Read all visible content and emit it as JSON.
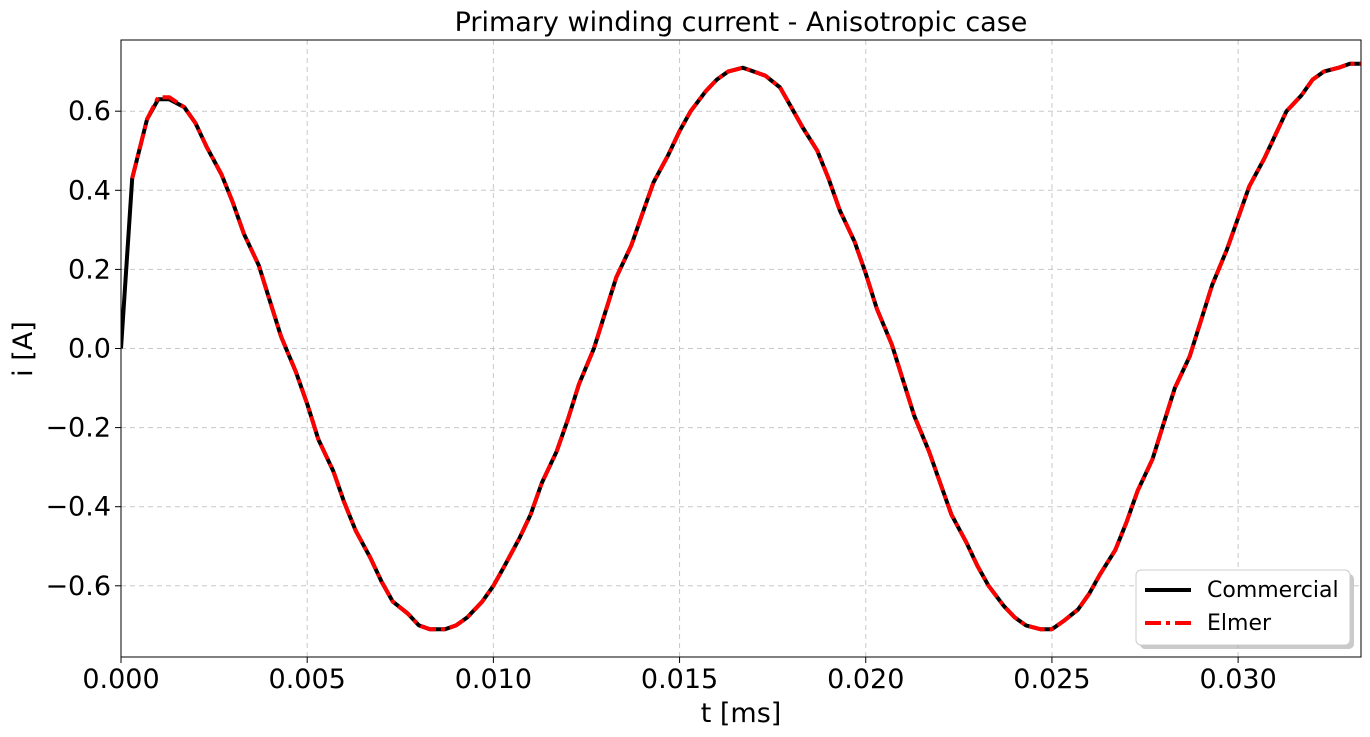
{
  "chart_data": {
    "type": "line",
    "title": "Primary winding current - Anisotropic case",
    "xlabel": "t [ms]",
    "ylabel": "i [A]",
    "xlim": [
      0.0,
      0.0333
    ],
    "ylim": [
      -0.78,
      0.78
    ],
    "xticks": [
      0.0,
      0.005,
      0.01,
      0.015,
      0.02,
      0.025,
      0.03
    ],
    "xtick_labels": [
      "0.000",
      "0.005",
      "0.010",
      "0.015",
      "0.020",
      "0.025",
      "0.030"
    ],
    "yticks": [
      -0.6,
      -0.4,
      -0.2,
      0.0,
      0.2,
      0.4,
      0.6
    ],
    "ytick_labels": [
      "−0.6",
      "−0.4",
      "−0.2",
      "0.0",
      "0.2",
      "0.4",
      "0.6"
    ],
    "grid": true,
    "legend_position": "bottom-right",
    "series": [
      {
        "name": "Commercial",
        "color": "#000000",
        "style": "solid",
        "x": [
          0.0,
          0.0003,
          0.0007,
          0.001,
          0.0013,
          0.0017,
          0.002,
          0.0023,
          0.0027,
          0.003,
          0.0033,
          0.0037,
          0.004,
          0.0043,
          0.0047,
          0.005,
          0.0053,
          0.0057,
          0.006,
          0.0063,
          0.0067,
          0.007,
          0.0073,
          0.0077,
          0.008,
          0.0083,
          0.0087,
          0.009,
          0.0093,
          0.0097,
          0.01,
          0.0103,
          0.0107,
          0.011,
          0.0113,
          0.0117,
          0.012,
          0.0123,
          0.0127,
          0.013,
          0.0133,
          0.0137,
          0.014,
          0.0143,
          0.0147,
          0.015,
          0.0153,
          0.0157,
          0.016,
          0.0163,
          0.0167,
          0.017,
          0.0173,
          0.0177,
          0.018,
          0.0183,
          0.0187,
          0.019,
          0.0193,
          0.0197,
          0.02,
          0.0203,
          0.0207,
          0.021,
          0.0213,
          0.0217,
          0.022,
          0.0223,
          0.0227,
          0.023,
          0.0233,
          0.0237,
          0.024,
          0.0243,
          0.0247,
          0.025,
          0.0253,
          0.0257,
          0.026,
          0.0263,
          0.0267,
          0.027,
          0.0273,
          0.0277,
          0.028,
          0.0283,
          0.0287,
          0.029,
          0.0293,
          0.0297,
          0.03,
          0.0303,
          0.0307,
          0.031,
          0.0313,
          0.0317,
          0.032,
          0.0323,
          0.0327,
          0.033,
          0.0333
        ],
        "y": [
          0.0,
          0.43,
          0.58,
          0.63,
          0.63,
          0.61,
          0.57,
          0.51,
          0.44,
          0.37,
          0.29,
          0.21,
          0.12,
          0.03,
          -0.06,
          -0.14,
          -0.23,
          -0.31,
          -0.39,
          -0.46,
          -0.53,
          -0.59,
          -0.64,
          -0.67,
          -0.7,
          -0.71,
          -0.71,
          -0.7,
          -0.68,
          -0.64,
          -0.6,
          -0.55,
          -0.48,
          -0.42,
          -0.34,
          -0.26,
          -0.18,
          -0.09,
          0.0,
          0.09,
          0.18,
          0.26,
          0.34,
          0.42,
          0.49,
          0.55,
          0.6,
          0.65,
          0.68,
          0.7,
          0.71,
          0.7,
          0.69,
          0.66,
          0.61,
          0.56,
          0.5,
          0.43,
          0.35,
          0.27,
          0.19,
          0.1,
          0.01,
          -0.08,
          -0.17,
          -0.26,
          -0.34,
          -0.42,
          -0.49,
          -0.55,
          -0.6,
          -0.65,
          -0.68,
          -0.7,
          -0.71,
          -0.71,
          -0.69,
          -0.66,
          -0.62,
          -0.57,
          -0.51,
          -0.44,
          -0.36,
          -0.28,
          -0.19,
          -0.1,
          -0.02,
          0.07,
          0.16,
          0.25,
          0.33,
          0.41,
          0.48,
          0.54,
          0.6,
          0.64,
          0.68,
          0.7,
          0.71,
          0.72,
          0.72
        ]
      },
      {
        "name": "Elmer",
        "color": "#ff0000",
        "style": "dashdot",
        "x": [
          0.0003,
          0.0007,
          0.001,
          0.0013,
          0.0017,
          0.002,
          0.0023,
          0.0027,
          0.003,
          0.0033,
          0.0037,
          0.004,
          0.0043,
          0.0047,
          0.005,
          0.0053,
          0.0057,
          0.006,
          0.0063,
          0.0067,
          0.007,
          0.0073,
          0.0077,
          0.008,
          0.0083,
          0.0087,
          0.009,
          0.0093,
          0.0097,
          0.01,
          0.0103,
          0.0107,
          0.011,
          0.0113,
          0.0117,
          0.012,
          0.0123,
          0.0127,
          0.013,
          0.0133,
          0.0137,
          0.014,
          0.0143,
          0.0147,
          0.015,
          0.0153,
          0.0157,
          0.016,
          0.0163,
          0.0167,
          0.017,
          0.0173,
          0.0177,
          0.018,
          0.0183,
          0.0187,
          0.019,
          0.0193,
          0.0197,
          0.02,
          0.0203,
          0.0207,
          0.021,
          0.0213,
          0.0217,
          0.022,
          0.0223,
          0.0227,
          0.023,
          0.0233,
          0.0237,
          0.024,
          0.0243,
          0.0247,
          0.025,
          0.0253,
          0.0257,
          0.026,
          0.0263,
          0.0267,
          0.027,
          0.0273,
          0.0277,
          0.028,
          0.0283,
          0.0287,
          0.029,
          0.0293,
          0.0297,
          0.03,
          0.0303,
          0.0307,
          0.031,
          0.0313,
          0.0317,
          0.032,
          0.0323,
          0.0327,
          0.033,
          0.0333
        ],
        "y": [
          0.43,
          0.58,
          0.635,
          0.635,
          0.61,
          0.57,
          0.51,
          0.44,
          0.37,
          0.29,
          0.21,
          0.12,
          0.03,
          -0.06,
          -0.14,
          -0.23,
          -0.31,
          -0.39,
          -0.46,
          -0.53,
          -0.59,
          -0.64,
          -0.67,
          -0.7,
          -0.71,
          -0.71,
          -0.7,
          -0.68,
          -0.64,
          -0.6,
          -0.55,
          -0.48,
          -0.42,
          -0.34,
          -0.26,
          -0.18,
          -0.09,
          0.0,
          0.09,
          0.18,
          0.26,
          0.34,
          0.42,
          0.49,
          0.55,
          0.6,
          0.65,
          0.68,
          0.7,
          0.71,
          0.7,
          0.69,
          0.66,
          0.61,
          0.56,
          0.5,
          0.43,
          0.35,
          0.27,
          0.19,
          0.1,
          0.01,
          -0.08,
          -0.17,
          -0.26,
          -0.34,
          -0.42,
          -0.49,
          -0.55,
          -0.6,
          -0.65,
          -0.68,
          -0.7,
          -0.71,
          -0.71,
          -0.69,
          -0.66,
          -0.62,
          -0.57,
          -0.51,
          -0.44,
          -0.36,
          -0.28,
          -0.19,
          -0.1,
          -0.02,
          0.07,
          0.16,
          0.25,
          0.33,
          0.41,
          0.48,
          0.54,
          0.6,
          0.64,
          0.68,
          0.7,
          0.71,
          0.72,
          0.72
        ]
      }
    ]
  }
}
